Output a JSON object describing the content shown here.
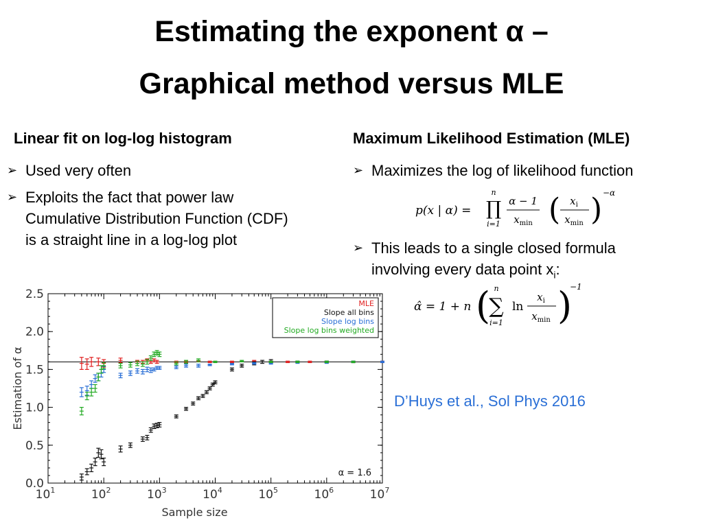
{
  "slide": {
    "title_line1": "Estimating the exponent α –",
    "title_line2": "Graphical method versus MLE"
  },
  "left": {
    "heading": "Linear fit on log-log histogram",
    "bullets": [
      "Used very often",
      "Exploits the fact that power law",
      "Cumulative Distribution Function (CDF)",
      "is a straight line in a log-log plot"
    ]
  },
  "right": {
    "heading": "Maximum Likelihood Estimation (MLE)",
    "bullet1": "Maximizes the log of likelihood function",
    "bullet2_line1": "This leads to a single closed formula",
    "bullet2_line2_prefix": "involving every data point x",
    "bullet2_line2_sub": "i",
    "bullet2_line2_suffix": ":",
    "formula1": {
      "lhs": "p(x | α) =",
      "upper": "n",
      "lower": "i=1",
      "num1": "α − 1",
      "den1": "x",
      "den1_sub": "min",
      "num2": "x",
      "num2_sub": "i",
      "den2": "x",
      "den2_sub": "min",
      "exponent": "−α"
    },
    "formula2": {
      "lhs": "α̂ = 1 + n",
      "upper": "n",
      "lower": "i=1",
      "ln": "ln",
      "num": "x",
      "num_sub": "i",
      "den": "x",
      "den_sub": "min",
      "exponent": "−1"
    }
  },
  "citation": "D’Huys et al., Sol Phys 2016",
  "colors": {
    "mle": "#e02020",
    "slope_all": "#111111",
    "slope_log": "#2a6fd6",
    "slope_log_weighted": "#22aa22",
    "citation": "#2a6fd6"
  },
  "chart_data": {
    "type": "scatter",
    "xlabel": "Sample size",
    "ylabel": "Estimation of α",
    "xscale": "log",
    "xlim": [
      10,
      10000000
    ],
    "ylim": [
      0,
      2.5
    ],
    "xticks": [
      {
        "v": 10,
        "base": "10",
        "exp": "1"
      },
      {
        "v": 100,
        "base": "10",
        "exp": "2"
      },
      {
        "v": 1000,
        "base": "10",
        "exp": "3"
      },
      {
        "v": 10000,
        "base": "10",
        "exp": "4"
      },
      {
        "v": 100000,
        "base": "10",
        "exp": "5"
      },
      {
        "v": 1000000,
        "base": "10",
        "exp": "6"
      },
      {
        "v": 10000000,
        "base": "10",
        "exp": "7"
      }
    ],
    "yticks": [
      "0.0",
      "0.5",
      "1.0",
      "1.5",
      "2.0",
      "2.5"
    ],
    "reference_line": 1.6,
    "annotation": "α = 1.6",
    "legend_position": "top-right",
    "series": [
      {
        "name": "MLE",
        "color": "#e02020",
        "x": [
          40,
          50,
          60,
          80,
          100,
          200,
          400,
          500,
          600,
          700,
          800,
          900,
          2000,
          3000,
          5000,
          8000,
          20000,
          50000,
          100000,
          200000,
          500000,
          1000000,
          3000000,
          10000000
        ],
        "y": [
          1.58,
          1.57,
          1.6,
          1.6,
          1.58,
          1.62,
          1.6,
          1.6,
          1.62,
          1.6,
          1.62,
          1.6,
          1.6,
          1.6,
          1.61,
          1.6,
          1.6,
          1.61,
          1.6,
          1.6,
          1.6,
          1.6,
          1.6,
          1.6
        ],
        "err": [
          0.08,
          0.07,
          0.06,
          0.05,
          0.05,
          0.03,
          0.02,
          0.02,
          0.02,
          0.02,
          0.02,
          0.02,
          0.01,
          0.01,
          0.01,
          0.01,
          0.01,
          0.01,
          0.01,
          0.01,
          0.01,
          0.01,
          0.01,
          0.01
        ]
      },
      {
        "name": "Slope all bins",
        "color": "#111111",
        "x": [
          40,
          50,
          60,
          70,
          80,
          90,
          100,
          200,
          300,
          500,
          600,
          700,
          800,
          900,
          1000,
          2000,
          3000,
          4000,
          5000,
          6000,
          7000,
          8000,
          9000,
          10000,
          20000,
          30000,
          50000,
          70000,
          100000,
          300000,
          1000000,
          3000000
        ],
        "y": [
          0.08,
          0.15,
          0.2,
          0.28,
          0.4,
          0.38,
          0.28,
          0.45,
          0.5,
          0.58,
          0.6,
          0.7,
          0.75,
          0.76,
          0.77,
          0.88,
          0.98,
          1.05,
          1.12,
          1.15,
          1.2,
          1.25,
          1.3,
          1.33,
          1.5,
          1.55,
          1.58,
          1.6,
          1.61,
          1.6,
          1.6,
          1.6
        ],
        "err": [
          0.04,
          0.04,
          0.05,
          0.05,
          0.06,
          0.06,
          0.05,
          0.04,
          0.03,
          0.03,
          0.03,
          0.03,
          0.03,
          0.03,
          0.03,
          0.02,
          0.02,
          0.02,
          0.02,
          0.02,
          0.02,
          0.02,
          0.02,
          0.02,
          0.02,
          0.02,
          0.02,
          0.02,
          0.02,
          0.01,
          0.01,
          0.01
        ]
      },
      {
        "name": "Slope log bins",
        "color": "#2a6fd6",
        "x": [
          40,
          50,
          60,
          70,
          80,
          90,
          100,
          200,
          300,
          400,
          500,
          600,
          700,
          800,
          900,
          1000,
          2000,
          3000,
          5000,
          8000,
          20000,
          50000,
          100000,
          300000,
          1000000,
          3000000,
          10000000
        ],
        "y": [
          1.2,
          1.22,
          1.3,
          1.38,
          1.4,
          1.45,
          1.5,
          1.42,
          1.45,
          1.48,
          1.47,
          1.5,
          1.49,
          1.5,
          1.52,
          1.52,
          1.53,
          1.55,
          1.55,
          1.56,
          1.57,
          1.58,
          1.58,
          1.59,
          1.59,
          1.6,
          1.6
        ],
        "err": [
          0.06,
          0.06,
          0.05,
          0.05,
          0.05,
          0.05,
          0.04,
          0.03,
          0.03,
          0.03,
          0.03,
          0.03,
          0.03,
          0.02,
          0.02,
          0.02,
          0.02,
          0.02,
          0.02,
          0.01,
          0.01,
          0.01,
          0.01,
          0.01,
          0.01,
          0.01,
          0.01
        ]
      },
      {
        "name": "Slope log bins weighted",
        "color": "#22aa22",
        "x": [
          40,
          50,
          60,
          70,
          80,
          90,
          100,
          200,
          300,
          400,
          500,
          600,
          700,
          800,
          900,
          1000,
          2000,
          3000,
          5000,
          10000,
          30000,
          100000,
          300000,
          1000000,
          3000000
        ],
        "y": [
          0.95,
          1.15,
          1.2,
          1.25,
          1.4,
          1.5,
          1.55,
          1.55,
          1.56,
          1.58,
          1.57,
          1.6,
          1.65,
          1.7,
          1.72,
          1.7,
          1.58,
          1.6,
          1.62,
          1.6,
          1.61,
          1.6,
          1.6,
          1.6,
          1.6
        ],
        "err": [
          0.05,
          0.05,
          0.05,
          0.05,
          0.05,
          0.05,
          0.04,
          0.03,
          0.03,
          0.03,
          0.03,
          0.03,
          0.03,
          0.03,
          0.03,
          0.03,
          0.02,
          0.02,
          0.02,
          0.01,
          0.01,
          0.01,
          0.01,
          0.01,
          0.01
        ]
      }
    ]
  }
}
